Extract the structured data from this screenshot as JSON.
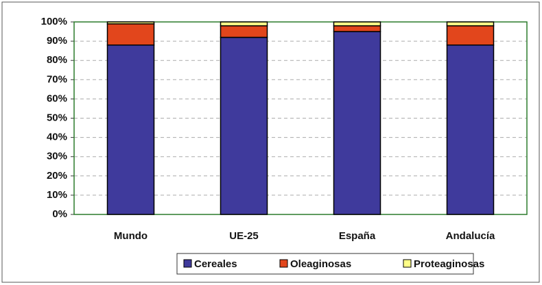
{
  "chart_data": {
    "type": "stacked_bar",
    "categories": [
      "Mundo",
      "UE-25",
      "España",
      "Andalucía"
    ],
    "series": [
      {
        "name": "Cereales",
        "color": "#3f3a9c",
        "values": [
          88,
          92,
          95,
          88
        ]
      },
      {
        "name": "Oleaginosas",
        "color": "#e2461c",
        "values": [
          11,
          6,
          3,
          10
        ]
      },
      {
        "name": "Proteaginosas",
        "color": "#ffff88",
        "values": [
          1,
          2,
          2,
          2
        ]
      }
    ],
    "ylim": [
      0,
      100
    ],
    "yticks": [
      {
        "value": 0,
        "label": "0%"
      },
      {
        "value": 10,
        "label": "10%"
      },
      {
        "value": 20,
        "label": "20%"
      },
      {
        "value": 30,
        "label": "30%"
      },
      {
        "value": 40,
        "label": "40%"
      },
      {
        "value": 50,
        "label": "50%"
      },
      {
        "value": 60,
        "label": "60%"
      },
      {
        "value": 70,
        "label": "70%"
      },
      {
        "value": 80,
        "label": "80%"
      },
      {
        "value": 90,
        "label": "90%"
      },
      {
        "value": 100,
        "label": "100%"
      }
    ],
    "grid": true,
    "legend": "bottom"
  }
}
